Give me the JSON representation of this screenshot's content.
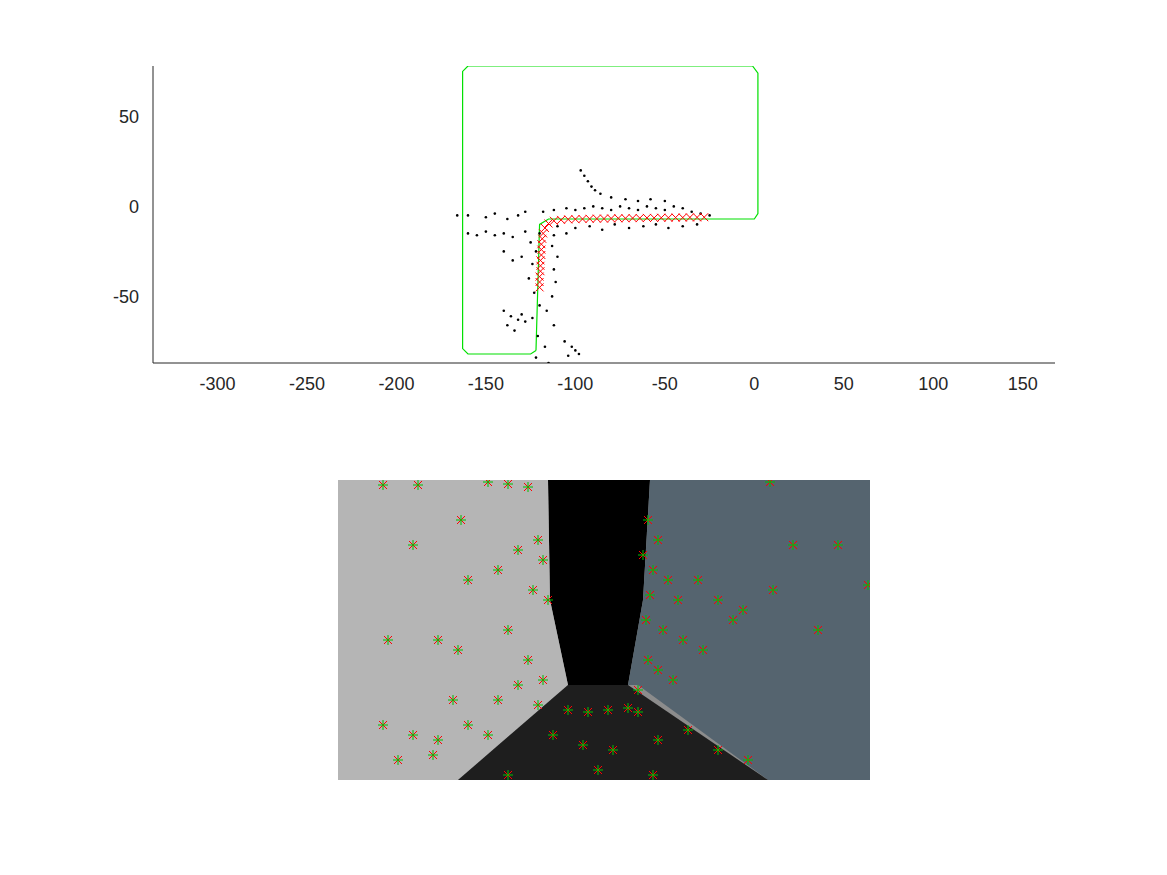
{
  "chart_data": [
    {
      "type": "scatter",
      "xlim": [
        -336,
        168
      ],
      "ylim": [
        -87,
        78
      ],
      "xticks": [
        -300,
        -250,
        -200,
        -150,
        -100,
        -50,
        0,
        50,
        100,
        150
      ],
      "yticks": [
        -50,
        0,
        50
      ],
      "grid": false,
      "series": [
        {
          "type": "line",
          "color": "#00e000",
          "marker": "none",
          "line_style": "solid",
          "x": [
            -122,
            -120,
            -115,
            0,
            2,
            2,
            -1,
            -160,
            -163,
            -163,
            -160,
            -125,
            -122
          ],
          "values": [
            -80,
            -10,
            -7,
            -7,
            -4,
            74,
            78,
            78,
            75,
            -79,
            -82,
            -82,
            -80
          ]
        },
        {
          "type": "scatter",
          "color": "#000000",
          "marker": "point",
          "x": [
            -160,
            -166,
            -150,
            -145,
            -138,
            -132,
            -128,
            -118,
            -112,
            -105,
            -100,
            -95,
            -90,
            -85,
            -80,
            -75,
            -70,
            -65,
            -60,
            -55,
            -50,
            -45,
            -40,
            -35,
            -30,
            -25,
            -110,
            -100,
            -92,
            -85,
            -78,
            -70,
            -62,
            -55,
            -48,
            -40,
            -32,
            -160,
            -155,
            -150,
            -145,
            -140,
            -135,
            -128,
            -120,
            -112,
            -105,
            -97,
            -95,
            -93,
            -91,
            -89,
            -86,
            -80,
            -72,
            -65,
            -58,
            -50,
            -125,
            -122,
            -113,
            -110,
            -124,
            -112,
            -126,
            -111,
            -123,
            -113,
            -120,
            -116,
            -124,
            -112,
            -121,
            -117,
            -122,
            -115,
            -140,
            -136,
            -132,
            -138,
            -128,
            -134,
            -130,
            -106,
            -102,
            -98,
            -104,
            -100,
            -140,
            -135,
            -130
          ],
          "values": [
            -5,
            -5,
            -6,
            -4,
            -7,
            -5,
            -3,
            -3,
            -2,
            -1,
            -2,
            -1,
            0,
            -1,
            -2,
            0,
            -1,
            -2,
            0,
            -1,
            -2,
            0,
            -1,
            -3,
            -4,
            -5,
            -11,
            -12,
            -11,
            -13,
            -10,
            -12,
            -11,
            -10,
            -12,
            -11,
            -10,
            -15,
            -16,
            -14,
            -16,
            -15,
            -17,
            -14,
            -15,
            -16,
            -15,
            20,
            17,
            14,
            11,
            9,
            7,
            5,
            4,
            3,
            4,
            3,
            -20,
            -25,
            -22,
            -28,
            -32,
            -35,
            -40,
            -42,
            -48,
            -50,
            -55,
            -58,
            -62,
            -66,
            -72,
            -78,
            -84,
            -87,
            -58,
            -61,
            -63,
            -66,
            -64,
            -69,
            -60,
            -75,
            -78,
            -82,
            -83,
            -80,
            -25,
            -30,
            -28
          ]
        },
        {
          "type": "scatter",
          "color": "#ff0000",
          "marker": "x",
          "x": [
            -120,
            -120,
            -120,
            -119.5,
            -119.5,
            -119.5,
            -119,
            -119,
            -119,
            -118.5,
            -118,
            -117,
            -115,
            -112,
            -108,
            -104,
            -100,
            -96,
            -92,
            -88,
            -84,
            -80,
            -76,
            -72,
            -68,
            -64,
            -60,
            -56,
            -52,
            -48,
            -44,
            -40,
            -36,
            -32,
            -28
          ],
          "values": [
            -45,
            -42,
            -39,
            -36,
            -33,
            -30,
            -27,
            -24,
            -21,
            -18,
            -15,
            -12,
            -9.5,
            -8,
            -7.5,
            -7.2,
            -7.1,
            -7,
            -6.9,
            -6.8,
            -6.8,
            -6.7,
            -6.6,
            -6.6,
            -6.5,
            -6.5,
            -6.4,
            -6.4,
            -6.3,
            -6.3,
            -6.2,
            -6.2,
            -6.1,
            -6.1,
            -6
          ]
        }
      ]
    },
    {
      "type": "scatter",
      "xlim": [
        0,
        532
      ],
      "ylim": [
        0,
        300
      ],
      "tick_labels": false,
      "grid": false,
      "series": [
        {
          "type": "scatter",
          "color": "#ff0000",
          "marker": "x",
          "x": [
            45,
            80,
            150,
            170,
            190,
            123,
            200,
            205,
            180,
            160,
            195,
            210,
            75,
            130,
            50,
            100,
            120,
            170,
            190,
            205,
            180,
            160,
            115,
            45,
            75,
            100,
            130,
            150,
            60,
            95,
            310,
            320,
            305,
            315,
            330,
            340,
            312,
            308,
            325,
            345,
            310,
            320,
            335,
            300,
            360,
            380,
            405,
            455,
            500,
            480,
            435,
            365,
            395,
            432,
            530,
            200,
            230,
            250,
            270,
            290,
            300,
            215,
            245,
            275,
            320,
            350,
            380,
            410,
            170,
            260,
            315
          ],
          "values": [
            295,
            295,
            298,
            296,
            293,
            260,
            240,
            220,
            230,
            210,
            190,
            180,
            235,
            200,
            140,
            140,
            130,
            150,
            120,
            100,
            95,
            80,
            80,
            55,
            45,
            40,
            55,
            45,
            20,
            25,
            260,
            240,
            225,
            210,
            200,
            180,
            185,
            160,
            150,
            140,
            120,
            110,
            100,
            90,
            200,
            180,
            170,
            235,
            235,
            150,
            190,
            130,
            160,
            298,
            195,
            75,
            70,
            68,
            70,
            72,
            68,
            45,
            35,
            30,
            40,
            50,
            30,
            20,
            5,
            10,
            5
          ]
        },
        {
          "type": "scatter",
          "color": "#00c000",
          "marker": "plus",
          "x": [
            45,
            80,
            150,
            170,
            190,
            123,
            200,
            205,
            180,
            160,
            195,
            210,
            75,
            130,
            50,
            100,
            120,
            170,
            190,
            205,
            180,
            160,
            115,
            45,
            75,
            100,
            130,
            150,
            60,
            95,
            310,
            320,
            305,
            315,
            330,
            340,
            312,
            308,
            325,
            345,
            310,
            320,
            335,
            300,
            360,
            380,
            405,
            455,
            500,
            480,
            435,
            365,
            395,
            432,
            530,
            200,
            230,
            250,
            270,
            290,
            300,
            215,
            245,
            275,
            320,
            350,
            380,
            410,
            170,
            260,
            315
          ],
          "values": [
            295,
            295,
            298,
            296,
            293,
            260,
            240,
            220,
            230,
            210,
            190,
            180,
            235,
            200,
            140,
            140,
            130,
            150,
            120,
            100,
            95,
            80,
            80,
            55,
            45,
            40,
            55,
            45,
            20,
            25,
            260,
            240,
            225,
            210,
            200,
            180,
            185,
            160,
            150,
            140,
            120,
            110,
            100,
            90,
            200,
            180,
            170,
            235,
            235,
            150,
            190,
            130,
            160,
            298,
            195,
            75,
            70,
            68,
            70,
            72,
            68,
            45,
            35,
            30,
            40,
            50,
            30,
            20,
            5,
            10,
            5
          ]
        }
      ]
    }
  ]
}
